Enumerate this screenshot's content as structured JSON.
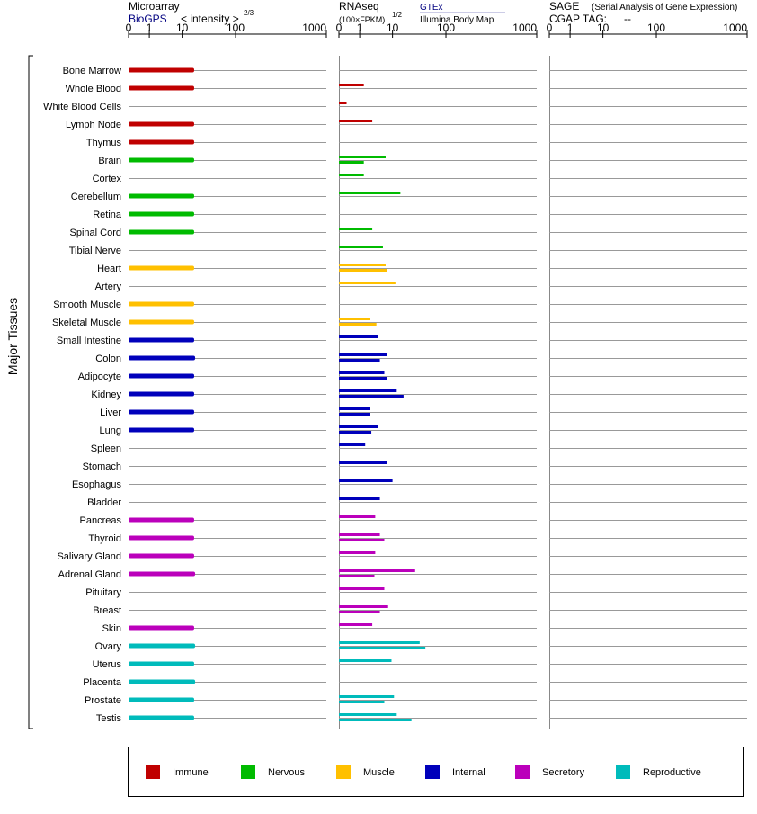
{
  "header": {
    "microarray_title": "Microarray",
    "microarray_source": "BioGPS",
    "microarray_unit": "< intensity >",
    "microarray_exp": "2/3",
    "rnaseq_title": "RNAseq",
    "rnaseq_unit": "(100×FPKM)",
    "rnaseq_exp": "1/2",
    "rnaseq_source1": "GTEx",
    "rnaseq_source2": "Illumina Body Map",
    "sage_title": "SAGE",
    "sage_subtitle": "(Serial Analysis of Gene Expression)",
    "cgap_label": "CGAP TAG:",
    "cgap_value": "--"
  },
  "y_group_label": "Major Tissues",
  "legend": [
    {
      "key": "immune",
      "label": "Immune",
      "color": "#c00000"
    },
    {
      "key": "nervous",
      "label": "Nervous",
      "color": "#00bb00"
    },
    {
      "key": "muscle",
      "label": "Muscle",
      "color": "#ffc000"
    },
    {
      "key": "internal",
      "label": "Internal",
      "color": "#0000bb"
    },
    {
      "key": "secretory",
      "label": "Secretory",
      "color": "#bb00bb"
    },
    {
      "key": "reproductive",
      "label": "Reproductive",
      "color": "#00bbbb"
    }
  ],
  "chart_data": {
    "type": "bar",
    "orientation": "horizontal",
    "panels": [
      "microarray",
      "rnaseq",
      "sage"
    ],
    "x_ticks": [
      0,
      1,
      10,
      100,
      1000
    ],
    "x_tick_labels": [
      "0",
      "1",
      "10",
      "100",
      "1000"
    ],
    "x_range": [
      0,
      1000
    ],
    "grid": true,
    "legend_position": "bottom",
    "tissues": [
      {
        "name": "Bone Marrow",
        "group": "immune",
        "microarray": 20,
        "rnaseq": []
      },
      {
        "name": "Whole Blood",
        "group": "immune",
        "microarray": 20,
        "rnaseq": [
          1.5
        ]
      },
      {
        "name": "White Blood Cells",
        "group": "immune",
        "microarray": null,
        "rnaseq": [
          0.05
        ]
      },
      {
        "name": "Lymph Node",
        "group": "immune",
        "microarray": 20,
        "rnaseq": [
          3
        ]
      },
      {
        "name": "Thymus",
        "group": "immune",
        "microarray": 20,
        "rnaseq": []
      },
      {
        "name": "Brain",
        "group": "nervous",
        "microarray": 20,
        "rnaseq": [
          7,
          1.5
        ]
      },
      {
        "name": "Cortex",
        "group": "nervous",
        "microarray": null,
        "rnaseq": [
          1.5
        ]
      },
      {
        "name": "Cerebellum",
        "group": "nervous",
        "microarray": 20,
        "rnaseq": [
          16
        ]
      },
      {
        "name": "Retina",
        "group": "nervous",
        "microarray": 20,
        "rnaseq": []
      },
      {
        "name": "Spinal Cord",
        "group": "nervous",
        "microarray": 20,
        "rnaseq": [
          3
        ]
      },
      {
        "name": "Tibial Nerve",
        "group": "nervous",
        "microarray": null,
        "rnaseq": [
          6
        ]
      },
      {
        "name": "Heart",
        "group": "muscle",
        "microarray": 20,
        "rnaseq": [
          7,
          7.5
        ]
      },
      {
        "name": "Artery",
        "group": "muscle",
        "microarray": null,
        "rnaseq": [
          12
        ]
      },
      {
        "name": "Smooth Muscle",
        "group": "muscle",
        "microarray": 20,
        "rnaseq": []
      },
      {
        "name": "Skeletal Muscle",
        "group": "muscle",
        "microarray": 20,
        "rnaseq": [
          2.5,
          4
        ]
      },
      {
        "name": "Small Intestine",
        "group": "internal",
        "microarray": 20,
        "rnaseq": [
          4.5
        ]
      },
      {
        "name": "Colon",
        "group": "internal",
        "microarray": 21,
        "rnaseq": [
          7.5,
          5
        ]
      },
      {
        "name": "Adipocyte",
        "group": "internal",
        "microarray": 20,
        "rnaseq": [
          6.5,
          7.5
        ]
      },
      {
        "name": "Kidney",
        "group": "internal",
        "microarray": 20,
        "rnaseq": [
          13,
          19
        ]
      },
      {
        "name": "Liver",
        "group": "internal",
        "microarray": 20,
        "rnaseq": [
          2.5,
          2.5
        ]
      },
      {
        "name": "Lung",
        "group": "internal",
        "microarray": 20,
        "rnaseq": [
          4.5,
          2.8
        ]
      },
      {
        "name": "Spleen",
        "group": "internal",
        "microarray": null,
        "rnaseq": [
          1.7
        ]
      },
      {
        "name": "Stomach",
        "group": "internal",
        "microarray": null,
        "rnaseq": [
          7.5
        ]
      },
      {
        "name": "Esophagus",
        "group": "internal",
        "microarray": null,
        "rnaseq": [
          10
        ]
      },
      {
        "name": "Bladder",
        "group": "internal",
        "microarray": null,
        "rnaseq": [
          5
        ]
      },
      {
        "name": "Pancreas",
        "group": "secretory",
        "microarray": 20,
        "rnaseq": [
          3.7
        ]
      },
      {
        "name": "Thyroid",
        "group": "secretory",
        "microarray": 20,
        "rnaseq": [
          5,
          6.5
        ]
      },
      {
        "name": "Salivary Gland",
        "group": "secretory",
        "microarray": 20,
        "rnaseq": [
          3.7
        ]
      },
      {
        "name": "Adrenal Gland",
        "group": "secretory",
        "microarray": 21,
        "rnaseq": [
          33,
          3.5
        ]
      },
      {
        "name": "Pituitary",
        "group": "secretory",
        "microarray": null,
        "rnaseq": [
          6.5
        ]
      },
      {
        "name": "Breast",
        "group": "secretory",
        "microarray": null,
        "rnaseq": [
          8,
          5
        ]
      },
      {
        "name": "Skin",
        "group": "secretory",
        "microarray": 20,
        "rnaseq": [
          3
        ]
      },
      {
        "name": "Ovary",
        "group": "reproductive",
        "microarray": 21,
        "rnaseq": [
          40,
          50
        ]
      },
      {
        "name": "Uterus",
        "group": "reproductive",
        "microarray": 20,
        "rnaseq": [
          9.5
        ]
      },
      {
        "name": "Placenta",
        "group": "reproductive",
        "microarray": 21,
        "rnaseq": []
      },
      {
        "name": "Prostate",
        "group": "reproductive",
        "microarray": 20,
        "rnaseq": [
          11,
          6.5
        ]
      },
      {
        "name": "Testis",
        "group": "reproductive",
        "microarray": 20,
        "rnaseq": [
          13,
          28
        ]
      }
    ]
  }
}
